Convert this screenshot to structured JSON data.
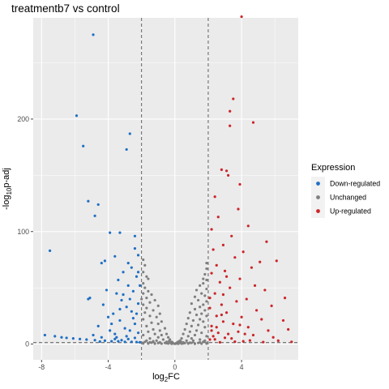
{
  "chart_data": {
    "type": "scatter",
    "title": "treatmentb7 vs control",
    "xlabel": {
      "base": "log",
      "sub": "2",
      "rest": "FC"
    },
    "ylabel": {
      "pre": "-log",
      "sub": "10",
      "post": "p-adj"
    },
    "xlim": [
      -8.5,
      7.4
    ],
    "ylim": [
      -14,
      290
    ],
    "x_ticks": [
      -8,
      -4,
      0,
      4
    ],
    "x_tick_labels": [
      "-8",
      "-4",
      "0",
      "4"
    ],
    "y_ticks": [
      0,
      100,
      200
    ],
    "y_tick_labels": [
      "0",
      "100",
      "200"
    ],
    "grid": true,
    "background": "#ebebeb",
    "thresholds": {
      "log2fc": [
        -2,
        2
      ],
      "neg_log10_padj": 1.3
    },
    "legend": {
      "title": "Expression",
      "position": "right",
      "entries": [
        {
          "label": "Down-regulated",
          "color": "#1f6fc5"
        },
        {
          "label": "Unchanged",
          "color": "#7f7f7f"
        },
        {
          "label": "Up-regulated",
          "color": "#cc2529"
        }
      ]
    },
    "series": [
      {
        "name": "Down-regulated",
        "color": "#1f6fc5",
        "points": [
          [
            -4.9,
            275
          ],
          [
            -5.9,
            203
          ],
          [
            -5.5,
            176
          ],
          [
            -2.7,
            187
          ],
          [
            -2.9,
            173
          ],
          [
            -5.2,
            127
          ],
          [
            -4.6,
            124
          ],
          [
            -4.8,
            114
          ],
          [
            -3.9,
            99
          ],
          [
            -3.3,
            99
          ],
          [
            -2.4,
            96
          ],
          [
            -7.5,
            83
          ],
          [
            -4.2,
            74
          ],
          [
            -3.6,
            78
          ],
          [
            -2.2,
            79
          ],
          [
            -2.6,
            68
          ],
          [
            -4.4,
            72
          ],
          [
            -3.1,
            64
          ],
          [
            -2.3,
            60
          ],
          [
            -3.4,
            57
          ],
          [
            -2.8,
            52
          ],
          [
            -5.1,
            41
          ],
          [
            -5.2,
            40
          ],
          [
            -3.5,
            45
          ],
          [
            -2.5,
            47
          ],
          [
            -3.2,
            39
          ],
          [
            -4.3,
            35
          ],
          [
            -2.9,
            33
          ],
          [
            -2.2,
            36
          ],
          [
            -3.7,
            27
          ],
          [
            -2.6,
            29
          ],
          [
            -4.0,
            24
          ],
          [
            -3.3,
            21
          ],
          [
            -2.4,
            18
          ],
          [
            -4.6,
            16
          ],
          [
            -3.0,
            14
          ],
          [
            -2.7,
            12
          ],
          [
            -2.2,
            10
          ],
          [
            -3.6,
            9
          ],
          [
            -7.8,
            8
          ],
          [
            -7.2,
            7
          ],
          [
            -6.8,
            6
          ],
          [
            -6.5,
            5.5
          ],
          [
            -6.1,
            5
          ],
          [
            -5.7,
            4.5
          ],
          [
            -5.3,
            4
          ],
          [
            -4.8,
            3.5
          ],
          [
            -4.2,
            3
          ],
          [
            -3.8,
            2.5
          ],
          [
            -3.4,
            2.5
          ],
          [
            -3.0,
            2
          ],
          [
            -2.6,
            2
          ],
          [
            -2.3,
            1.8
          ],
          [
            -2.1,
            1.6
          ],
          [
            -4.5,
            2.2
          ],
          [
            -3.2,
            3.5
          ],
          [
            -2.8,
            4.5
          ],
          [
            -2.4,
            5.5
          ],
          [
            -3.5,
            6
          ],
          [
            -2.9,
            7
          ],
          [
            -3.9,
            12
          ],
          [
            -2.5,
            23
          ],
          [
            -3.8,
            18
          ],
          [
            -2.3,
            27
          ],
          [
            -3.1,
            44
          ],
          [
            -2.1,
            52
          ],
          [
            -4.1,
            48
          ],
          [
            -2.7,
            40
          ],
          [
            -3.3,
            31
          ],
          [
            -2.2,
            64
          ],
          [
            -2.8,
            72
          ],
          [
            -2.4,
            85
          ],
          [
            -4.9,
            8
          ],
          [
            -4.4,
            6
          ],
          [
            -3.6,
            4.5
          ]
        ]
      },
      {
        "name": "Up-regulated",
        "color": "#cc2529",
        "points": [
          [
            4.0,
            291
          ],
          [
            3.5,
            218
          ],
          [
            3.3,
            207
          ],
          [
            4.7,
            197
          ],
          [
            3.3,
            194
          ],
          [
            2.8,
            155
          ],
          [
            3.1,
            154
          ],
          [
            3.2,
            150
          ],
          [
            3.9,
            142
          ],
          [
            2.4,
            131
          ],
          [
            3.8,
            120
          ],
          [
            2.6,
            113
          ],
          [
            4.4,
            105
          ],
          [
            2.2,
            102
          ],
          [
            5.5,
            91
          ],
          [
            3.4,
            96
          ],
          [
            2.9,
            88
          ],
          [
            2.3,
            84
          ],
          [
            4.1,
            82
          ],
          [
            5.1,
            73
          ],
          [
            6.1,
            74
          ],
          [
            3.6,
            77
          ],
          [
            2.5,
            70
          ],
          [
            4.6,
            68
          ],
          [
            3.0,
            65
          ],
          [
            2.2,
            63
          ],
          [
            3.9,
            58
          ],
          [
            2.7,
            55
          ],
          [
            4.8,
            52
          ],
          [
            3.3,
            50
          ],
          [
            5.4,
            48
          ],
          [
            2.4,
            45
          ],
          [
            6.6,
            41
          ],
          [
            4.3,
            40
          ],
          [
            3.7,
            38
          ],
          [
            2.8,
            35
          ],
          [
            5.8,
            34
          ],
          [
            2.1,
            32
          ],
          [
            4.9,
            30
          ],
          [
            3.1,
            28
          ],
          [
            2.5,
            25
          ],
          [
            4.0,
            24
          ],
          [
            5.2,
            22
          ],
          [
            6.5,
            21
          ],
          [
            2.9,
            20
          ],
          [
            3.5,
            18
          ],
          [
            2.2,
            16
          ],
          [
            4.4,
            15
          ],
          [
            6.8,
            13
          ],
          [
            5.6,
            12
          ],
          [
            3.8,
            11
          ],
          [
            2.6,
            10
          ],
          [
            3.2,
            9
          ],
          [
            4.7,
            8
          ],
          [
            2.3,
            7
          ],
          [
            5.9,
            6
          ],
          [
            3.4,
            5
          ],
          [
            2.1,
            4
          ],
          [
            6.2,
            3
          ],
          [
            4.1,
            2.5
          ],
          [
            7.0,
            2
          ],
          [
            5.3,
            1.8
          ],
          [
            2.7,
            1.6
          ],
          [
            3.6,
            2.1
          ],
          [
            4.5,
            3.2
          ],
          [
            2.4,
            4.2
          ],
          [
            3.0,
            5.6
          ],
          [
            2.2,
            12
          ],
          [
            2.8,
            26
          ],
          [
            2.1,
            41
          ],
          [
            3.1,
            60
          ],
          [
            2.5,
            15
          ],
          [
            3.9,
            17
          ],
          [
            4.2,
            9
          ],
          [
            2.9,
            44
          ]
        ]
      },
      {
        "name": "Unchanged",
        "color": "#7f7f7f",
        "points": [
          [
            1.9,
            57
          ],
          [
            1.7,
            54
          ],
          [
            1.5,
            52
          ],
          [
            1.9,
            49
          ],
          [
            1.3,
            48
          ],
          [
            1.6,
            45
          ],
          [
            1.8,
            43
          ],
          [
            1.2,
            42
          ],
          [
            1.4,
            39
          ],
          [
            1.9,
            38
          ],
          [
            1.0,
            36
          ],
          [
            1.7,
            35
          ],
          [
            1.5,
            33
          ],
          [
            1.2,
            31
          ],
          [
            1.8,
            30
          ],
          [
            0.9,
            28
          ],
          [
            1.6,
            27
          ],
          [
            1.3,
            26
          ],
          [
            1.9,
            25
          ],
          [
            0.8,
            23
          ],
          [
            1.5,
            22
          ],
          [
            1.1,
            21
          ],
          [
            1.7,
            20
          ],
          [
            0.7,
            18
          ],
          [
            1.4,
            17
          ],
          [
            1.0,
            16
          ],
          [
            1.8,
            15
          ],
          [
            0.6,
            13
          ],
          [
            1.3,
            12
          ],
          [
            0.9,
            11
          ],
          [
            1.6,
            10
          ],
          [
            0.5,
            9
          ],
          [
            1.2,
            8
          ],
          [
            0.8,
            7
          ],
          [
            1.9,
            7
          ],
          [
            0.4,
            5
          ],
          [
            1.0,
            5
          ],
          [
            1.5,
            4
          ],
          [
            0.3,
            3
          ],
          [
            0.7,
            3
          ],
          [
            1.1,
            3
          ],
          [
            1.7,
            2
          ],
          [
            0.2,
            2
          ],
          [
            0.5,
            1.5
          ],
          [
            0.9,
            1.2
          ],
          [
            1.4,
            1
          ],
          [
            0.1,
            0.6
          ],
          [
            0.4,
            0.4
          ],
          [
            0.8,
            0.5
          ],
          [
            1.2,
            0.3
          ],
          [
            1.6,
            0.4
          ],
          [
            1.9,
            0.5
          ],
          [
            0.6,
            0.9
          ],
          [
            0.3,
            1.1
          ],
          [
            1.8,
            3
          ],
          [
            -1.9,
            54
          ],
          [
            -1.8,
            50
          ],
          [
            -1.6,
            47
          ],
          [
            -1.9,
            45
          ],
          [
            -1.4,
            44
          ],
          [
            -1.7,
            41
          ],
          [
            -1.2,
            39
          ],
          [
            -1.5,
            37
          ],
          [
            -1.9,
            35
          ],
          [
            -1.0,
            34
          ],
          [
            -1.7,
            32
          ],
          [
            -1.3,
            30
          ],
          [
            -1.8,
            28
          ],
          [
            -0.9,
            27
          ],
          [
            -1.5,
            25
          ],
          [
            -1.1,
            24
          ],
          [
            -1.9,
            22
          ],
          [
            -0.8,
            20
          ],
          [
            -1.4,
            19
          ],
          [
            -1.0,
            18
          ],
          [
            -1.7,
            16
          ],
          [
            -0.6,
            14
          ],
          [
            -1.3,
            13
          ],
          [
            -0.9,
            12
          ],
          [
            -1.6,
            11
          ],
          [
            -0.5,
            9
          ],
          [
            -1.2,
            9
          ],
          [
            -0.8,
            8
          ],
          [
            -1.9,
            8
          ],
          [
            -0.4,
            6
          ],
          [
            -1.0,
            6
          ],
          [
            -1.5,
            5
          ],
          [
            -0.3,
            4
          ],
          [
            -0.7,
            4
          ],
          [
            -1.1,
            3
          ],
          [
            -1.7,
            3
          ],
          [
            -0.2,
            2
          ],
          [
            -0.5,
            2
          ],
          [
            -0.9,
            1.5
          ],
          [
            -1.4,
            1.2
          ],
          [
            -0.1,
            0.7
          ],
          [
            -0.4,
            0.5
          ],
          [
            -0.8,
            0.4
          ],
          [
            -1.2,
            0.4
          ],
          [
            -1.6,
            0.5
          ],
          [
            -1.9,
            0.6
          ],
          [
            -0.6,
            1
          ],
          [
            -0.3,
            1.3
          ],
          [
            -1.8,
            2
          ],
          [
            -1.3,
            2.5
          ],
          [
            -1.9,
            75
          ],
          [
            -1.8,
            70
          ],
          [
            -1.9,
            64
          ],
          [
            -1.7,
            60
          ],
          [
            1.9,
            67
          ],
          [
            1.8,
            62
          ],
          [
            1.9,
            72
          ],
          [
            -1.6,
            58
          ],
          [
            1.7,
            58
          ],
          [
            -2.0,
            40
          ],
          [
            0.0,
            0.2
          ],
          [
            0.2,
            0.3
          ],
          [
            -0.2,
            0.3
          ],
          [
            0.5,
            0.7
          ],
          [
            -0.5,
            0.8
          ],
          [
            1.0,
            1.0
          ],
          [
            -1.0,
            0.9
          ],
          [
            1.5,
            1.5
          ],
          [
            -1.5,
            1.6
          ],
          [
            1.95,
            1.2
          ],
          [
            -1.95,
            1.1
          ],
          [
            0.15,
            1.6
          ],
          [
            -0.15,
            1.5
          ],
          [
            0.35,
            2.4
          ],
          [
            -0.35,
            2.6
          ]
        ]
      }
    ]
  }
}
